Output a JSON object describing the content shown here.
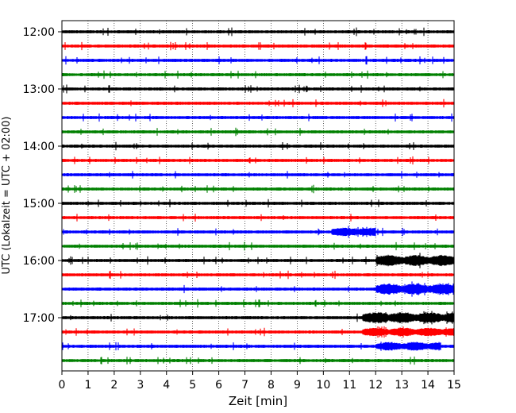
{
  "chart_data": {
    "type": "line",
    "title": "",
    "xlabel": "Zeit  [min]",
    "ylabel": "UTC (Lokalzeit = UTC + 02:00)",
    "xlim": [
      0,
      15
    ],
    "x_ticks": [
      "0",
      "1",
      "2",
      "3",
      "4",
      "5",
      "6",
      "7",
      "8",
      "9",
      "10",
      "11",
      "12",
      "13",
      "14",
      "15"
    ],
    "y_tick_labels": [
      "12:00",
      "13:00",
      "14:00",
      "15:00",
      "16:00",
      "17:00"
    ],
    "trace_interval_min": 15,
    "start_time": "12:00",
    "end_time": "17:45",
    "grid": "vertical dotted",
    "colors": [
      "#000000",
      "#ff0000",
      "#0000ff",
      "#008000"
    ],
    "events": [
      {
        "trace": "16:00",
        "from_min": 12.0,
        "to_min": 15.0,
        "level": "high"
      },
      {
        "trace": "16:30",
        "from_min": 12.0,
        "to_min": 15.0,
        "level": "high"
      },
      {
        "trace": "17:00",
        "from_min": 11.5,
        "to_min": 15.0,
        "level": "high"
      },
      {
        "trace": "17:15",
        "from_min": 11.5,
        "to_min": 15.0,
        "level": "medium"
      },
      {
        "trace": "17:30",
        "from_min": 12.0,
        "to_min": 14.5,
        "level": "medium"
      },
      {
        "trace": "15:30",
        "from_min": 10.3,
        "to_min": 12.0,
        "level": "medium"
      }
    ]
  }
}
